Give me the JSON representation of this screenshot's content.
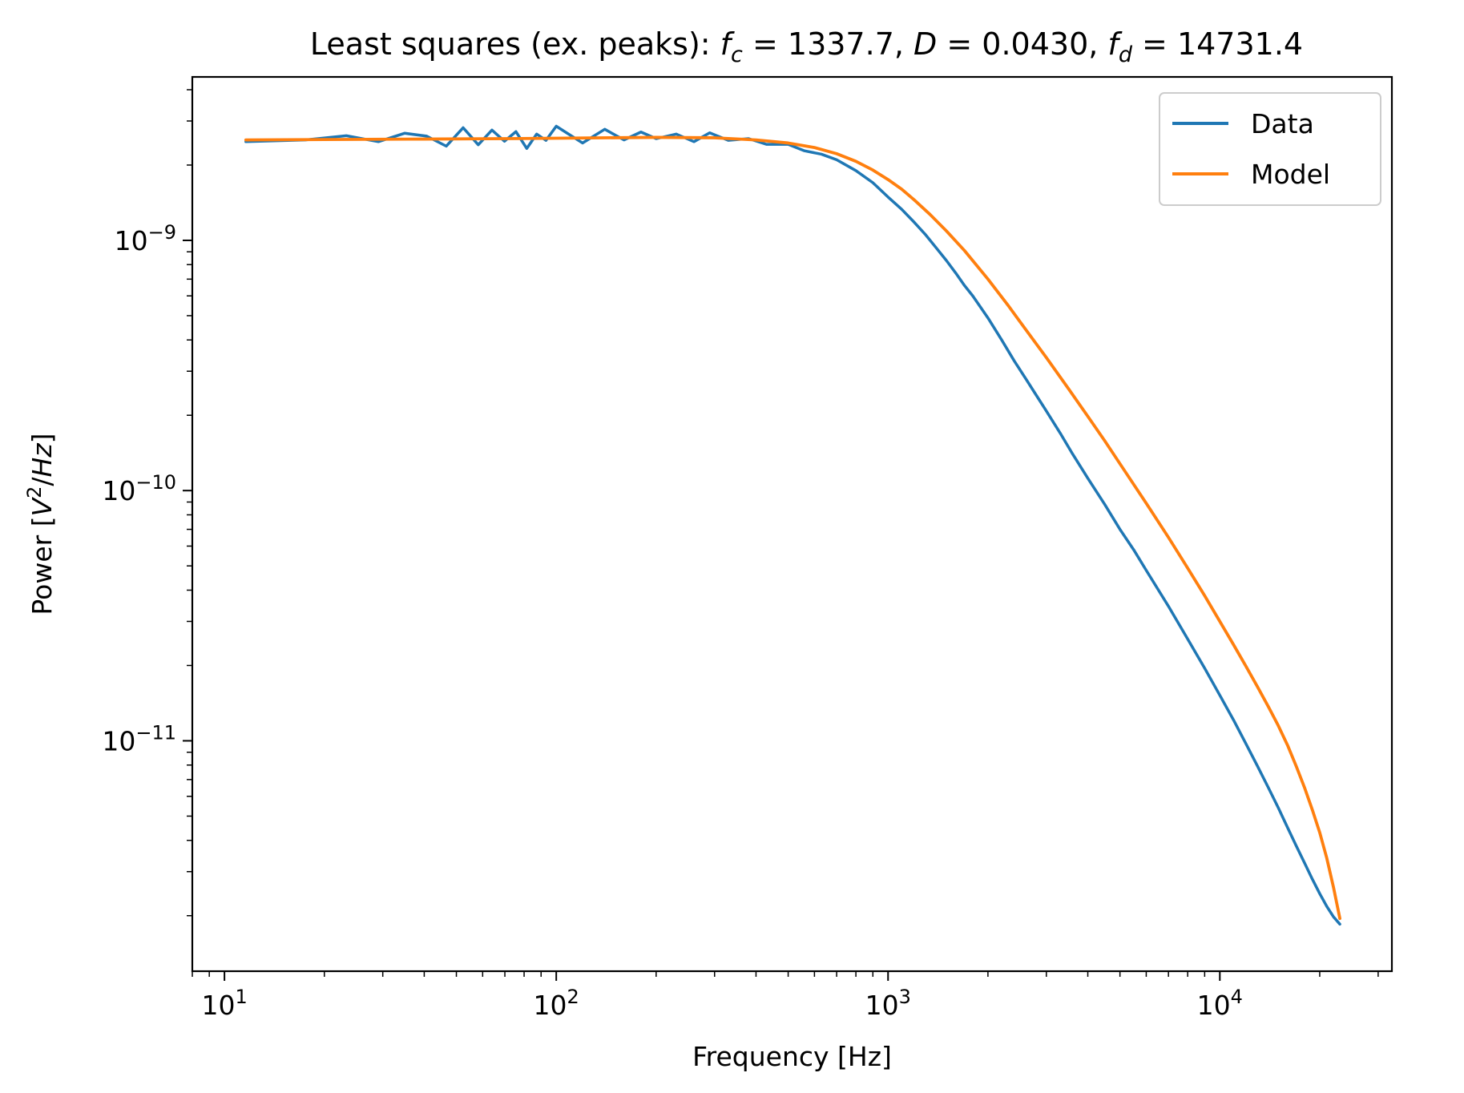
{
  "chart_data": {
    "type": "line",
    "title_parts": [
      {
        "text": "Least squares (ex. peaks): ",
        "style": "normal"
      },
      {
        "text": "f",
        "style": "italic"
      },
      {
        "text": "c",
        "style": "italic-sub"
      },
      {
        "text": " = 1337.7, ",
        "style": "normal"
      },
      {
        "text": "D",
        "style": "italic"
      },
      {
        "text": " = 0.0430, ",
        "style": "normal"
      },
      {
        "text": "f",
        "style": "italic"
      },
      {
        "text": "d",
        "style": "italic-sub"
      },
      {
        "text": " = 14731.4",
        "style": "normal"
      }
    ],
    "xlabel": "Frequency [Hz]",
    "ylabel_parts": [
      {
        "text": "Power [",
        "style": "normal"
      },
      {
        "text": "V",
        "style": "italic"
      },
      {
        "text": "2",
        "style": "sup"
      },
      {
        "text": "/",
        "style": "normal"
      },
      {
        "text": "Hz",
        "style": "italic"
      },
      {
        "text": "]",
        "style": "normal"
      }
    ],
    "xscale": "log",
    "yscale": "log",
    "xlim": [
      8.0,
      33000
    ],
    "ylim": [
      1.2e-12,
      4.5e-09
    ],
    "xticks": [
      {
        "value": 10,
        "base": "10",
        "exp": "1"
      },
      {
        "value": 100,
        "base": "10",
        "exp": "2"
      },
      {
        "value": 1000,
        "base": "10",
        "exp": "3"
      },
      {
        "value": 10000,
        "base": "10",
        "exp": "4"
      }
    ],
    "yticks": [
      {
        "value": 1e-09,
        "base": "10",
        "exp": "−9"
      },
      {
        "value": 1e-10,
        "base": "10",
        "exp": "−10"
      },
      {
        "value": 1e-11,
        "base": "10",
        "exp": "−11"
      }
    ],
    "grid": false,
    "legend_position": "top-right",
    "series": [
      {
        "name": "Data",
        "color": "#1f77b4",
        "x": [
          11.6,
          17.5,
          23.3,
          29.1,
          34.9,
          40.7,
          46.6,
          52.4,
          58.2,
          64.0,
          69.8,
          75.6,
          81.5,
          87.3,
          93.1,
          100,
          120,
          140,
          160,
          180,
          200,
          230,
          260,
          290,
          330,
          380,
          430,
          500,
          560,
          630,
          700,
          800,
          900,
          1000,
          1100,
          1200,
          1300,
          1400,
          1500,
          1600,
          1700,
          1800,
          2000,
          2200,
          2400,
          2600,
          2800,
          3000,
          3300,
          3600,
          4000,
          4500,
          5000,
          5500,
          6000,
          7000,
          8000,
          9000,
          10000,
          11000,
          12000,
          13000,
          14000,
          15000,
          16000,
          17000,
          18000,
          19000,
          20000,
          21000,
          22000,
          23000
        ],
        "y": [
          2.48e-09,
          2.52e-09,
          2.62e-09,
          2.48e-09,
          2.68e-09,
          2.61e-09,
          2.38e-09,
          2.82e-09,
          2.41e-09,
          2.76e-09,
          2.49e-09,
          2.72e-09,
          2.33e-09,
          2.66e-09,
          2.51e-09,
          2.86e-09,
          2.45e-09,
          2.78e-09,
          2.52e-09,
          2.71e-09,
          2.55e-09,
          2.66e-09,
          2.48e-09,
          2.69e-09,
          2.51e-09,
          2.55e-09,
          2.42e-09,
          2.42e-09,
          2.28e-09,
          2.21e-09,
          2.1e-09,
          1.9e-09,
          1.7e-09,
          1.49e-09,
          1.33e-09,
          1.18e-09,
          1.05e-09,
          9.3e-10,
          8.3e-10,
          7.4e-10,
          6.6e-10,
          6e-10,
          4.9e-10,
          4e-10,
          3.3e-10,
          2.8e-10,
          2.4e-10,
          2.08e-10,
          1.7e-10,
          1.4e-10,
          1.12e-10,
          8.8e-11,
          7e-11,
          5.8e-11,
          4.8e-11,
          3.45e-11,
          2.55e-11,
          1.95e-11,
          1.52e-11,
          1.21e-11,
          9.7e-12,
          7.9e-12,
          6.5e-12,
          5.4e-12,
          4.5e-12,
          3.8e-12,
          3.25e-12,
          2.8e-12,
          2.45e-12,
          2.18e-12,
          1.98e-12,
          1.85e-12
        ]
      },
      {
        "name": "Model",
        "color": "#ff7f0e",
        "x": [
          11.6,
          20,
          40,
          70,
          100,
          200,
          300,
          400,
          500,
          600,
          700,
          800,
          900,
          1000,
          1100,
          1200,
          1337.7,
          1500,
          1700,
          2000,
          2300,
          2600,
          3000,
          3500,
          4000,
          4500,
          5000,
          6000,
          7000,
          8000,
          9000,
          10000,
          11000,
          12000,
          13000,
          14000,
          15000,
          16000,
          17000,
          18000,
          19000,
          20000,
          21000,
          22000,
          23000
        ],
        "y": [
          2.52e-09,
          2.53e-09,
          2.54e-09,
          2.55e-09,
          2.56e-09,
          2.58e-09,
          2.57e-09,
          2.52e-09,
          2.45e-09,
          2.35e-09,
          2.22e-09,
          2.07e-09,
          1.91e-09,
          1.75e-09,
          1.6e-09,
          1.45e-09,
          1.27e-09,
          1.09e-09,
          9.1e-10,
          7e-10,
          5.5e-10,
          4.4e-10,
          3.4e-10,
          2.55e-10,
          1.98e-10,
          1.58e-10,
          1.28e-10,
          8.9e-11,
          6.5e-11,
          4.9e-11,
          3.8e-11,
          3e-11,
          2.42e-11,
          1.98e-11,
          1.64e-11,
          1.37e-11,
          1.15e-11,
          9.6e-12,
          7.9e-12,
          6.5e-12,
          5.3e-12,
          4.3e-12,
          3.4e-12,
          2.6e-12,
          1.95e-12
        ]
      }
    ]
  }
}
